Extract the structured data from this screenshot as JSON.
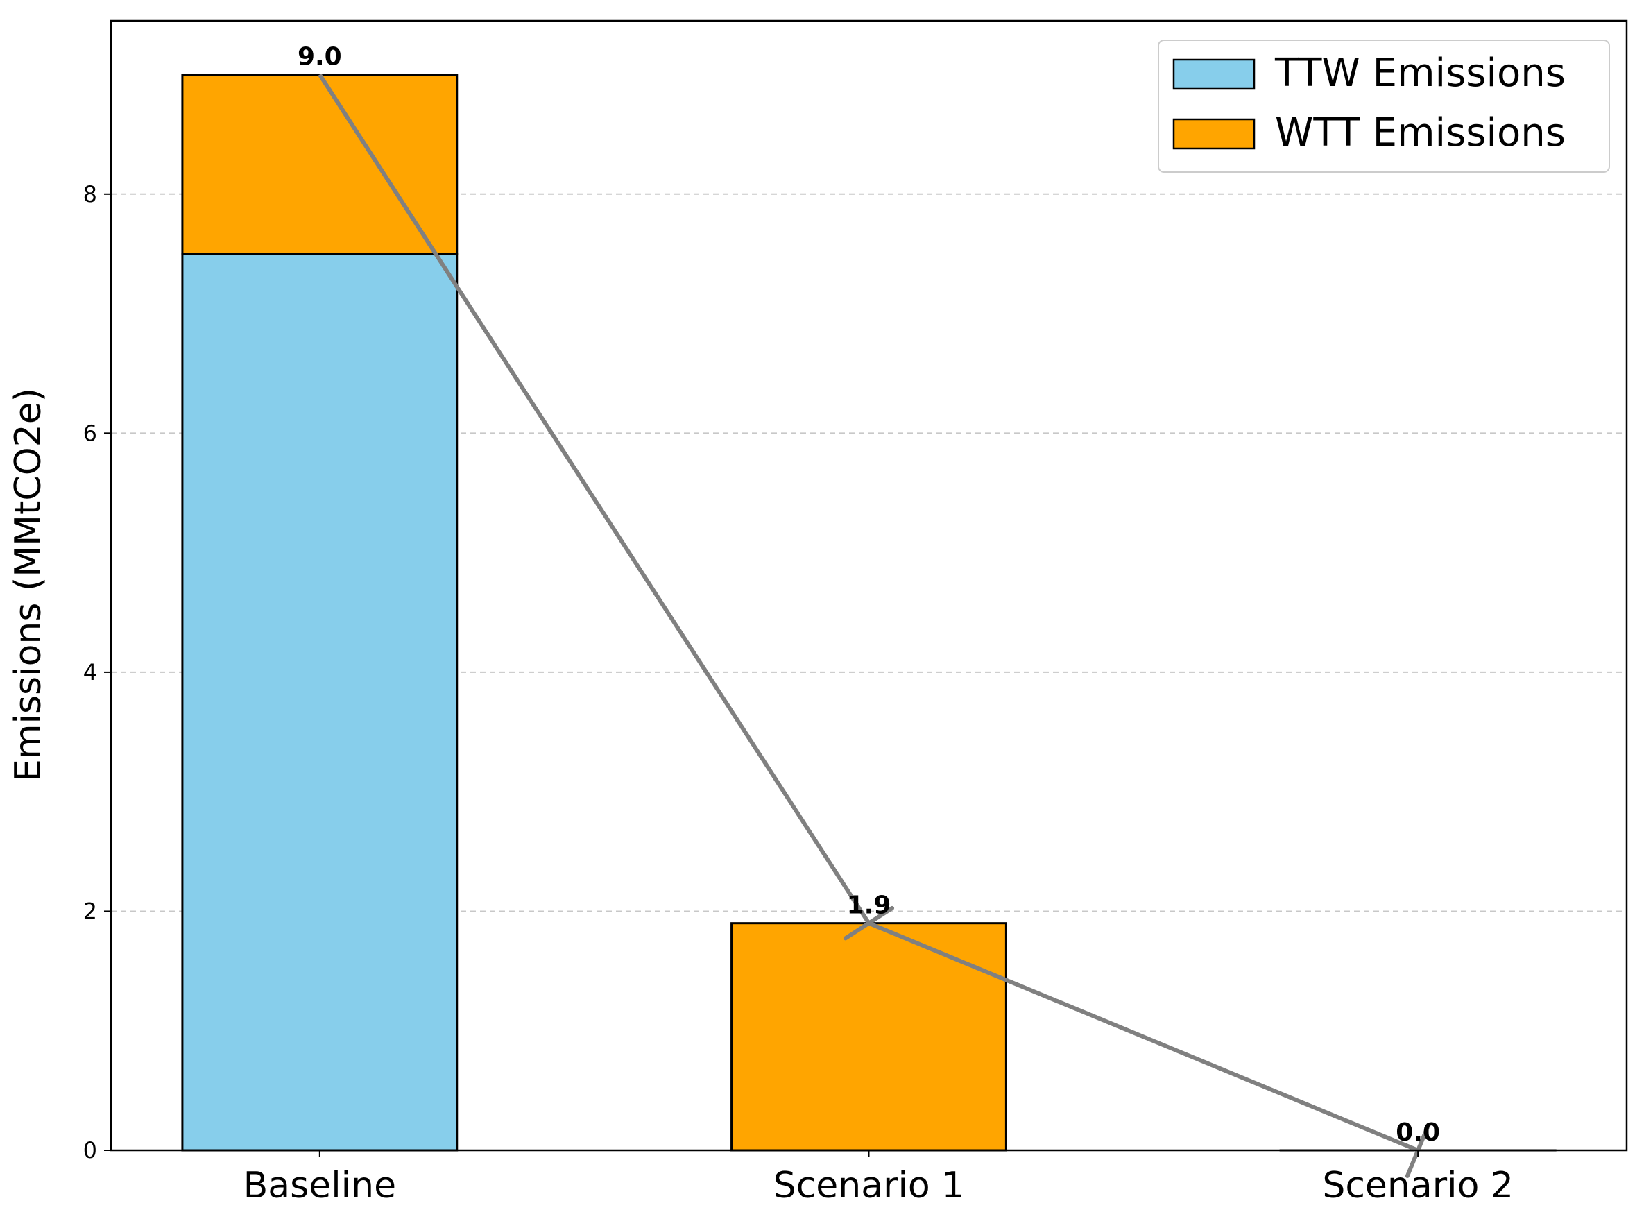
{
  "chart_data": {
    "type": "bar",
    "stacked": true,
    "categories": [
      "Baseline",
      "Scenario 1",
      "Scenario 2"
    ],
    "series": [
      {
        "name": "TTW Emissions",
        "values": [
          7.5,
          0.0,
          0.0
        ],
        "color": "#87CEEB"
      },
      {
        "name": "WTT Emissions",
        "values": [
          1.5,
          1.9,
          0.0
        ],
        "color": "#FFA500"
      }
    ],
    "totals": [
      9.0,
      1.9,
      0.0
    ],
    "total_labels": [
      "9.0",
      "1.9",
      "0.0"
    ],
    "trend_line": {
      "values": [
        9.0,
        1.9,
        0.0
      ],
      "color": "#808080"
    },
    "ylabel": "Emissions (MMtCO2e)",
    "ylim": [
      0,
      9.45
    ],
    "yticks": [
      0,
      2,
      4,
      6,
      8
    ],
    "grid": "y-dashed",
    "legend_position": "top-right"
  }
}
